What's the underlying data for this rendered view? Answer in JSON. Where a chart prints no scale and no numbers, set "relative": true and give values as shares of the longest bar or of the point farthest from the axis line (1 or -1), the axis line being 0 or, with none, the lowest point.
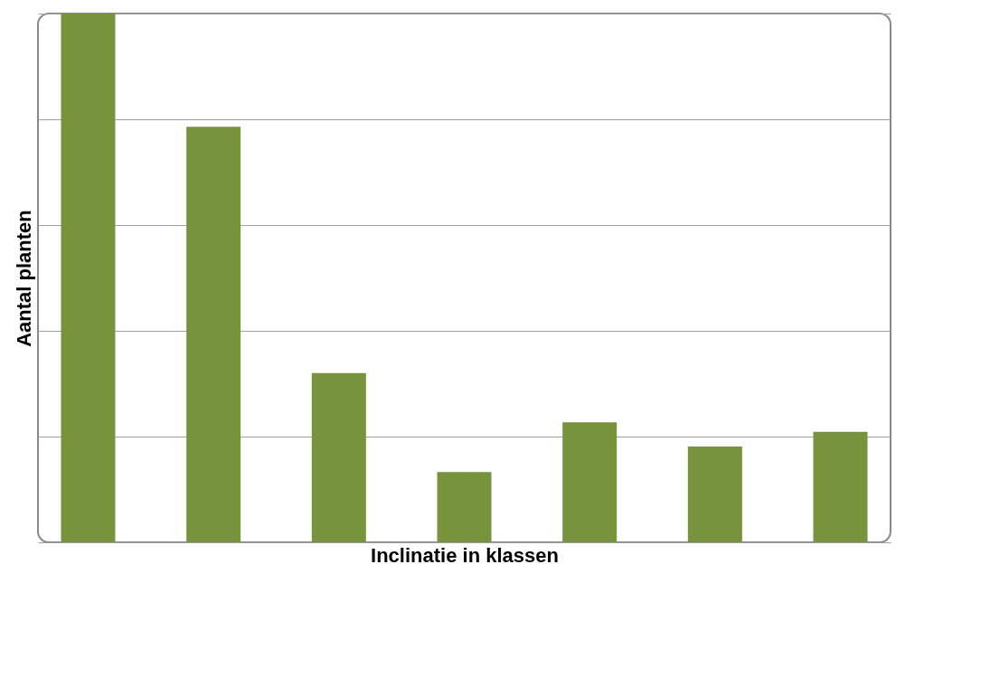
{
  "chart_data": {
    "type": "bar",
    "xlabel": "Inclinatie in klassen",
    "ylabel": "Aantal planten",
    "categories": [
      null,
      null,
      null,
      null,
      null,
      null,
      null
    ],
    "values": [
      1,
      0.786,
      0.32,
      0.133,
      0.227,
      0.181,
      0.209
    ],
    "color": "#77933c",
    "relative": true,
    "grid": "y",
    "tick_labels": false
  }
}
